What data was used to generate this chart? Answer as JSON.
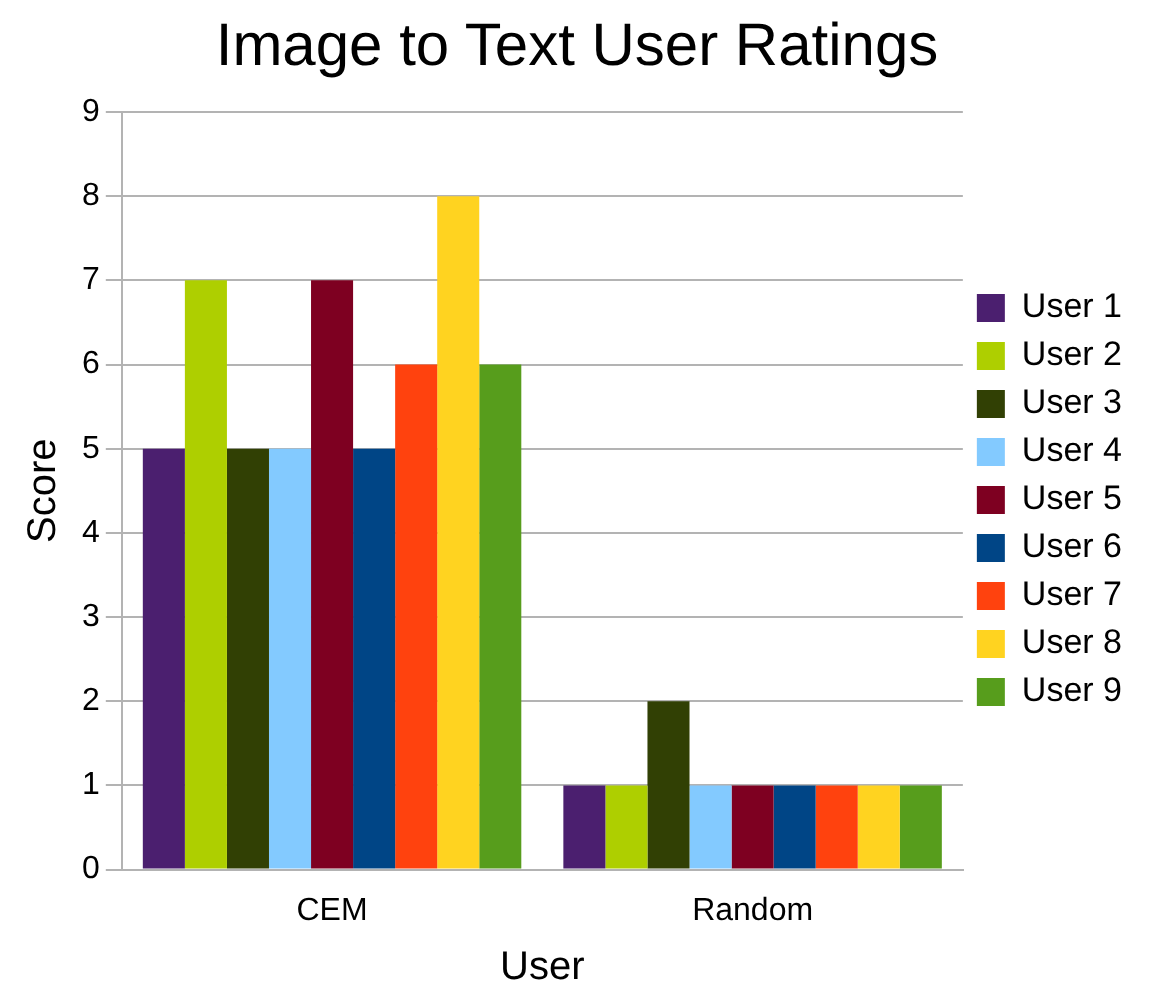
{
  "chart_data": {
    "type": "bar",
    "title": "Image to Text User Ratings",
    "xlabel": "User",
    "ylabel": "Score",
    "categories": [
      "CEM",
      "Random"
    ],
    "series": [
      {
        "name": "User 1",
        "color": "#4b1f6f",
        "values": [
          5,
          1
        ]
      },
      {
        "name": "User 2",
        "color": "#aecf00",
        "values": [
          7,
          1
        ]
      },
      {
        "name": "User 3",
        "color": "#314004",
        "values": [
          5,
          2
        ]
      },
      {
        "name": "User 4",
        "color": "#83caff",
        "values": [
          5,
          1
        ]
      },
      {
        "name": "User 5",
        "color": "#7e0021",
        "values": [
          7,
          1
        ]
      },
      {
        "name": "User 6",
        "color": "#004586",
        "values": [
          5,
          1
        ]
      },
      {
        "name": "User 7",
        "color": "#ff420e",
        "values": [
          6,
          1
        ]
      },
      {
        "name": "User 8",
        "color": "#ffd320",
        "values": [
          8,
          1
        ]
      },
      {
        "name": "User 9",
        "color": "#579d1c",
        "values": [
          6,
          1
        ]
      }
    ],
    "ylim": [
      0,
      9
    ],
    "yticks": [
      0,
      1,
      2,
      3,
      4,
      5,
      6,
      7,
      8,
      9
    ],
    "grid": "y",
    "legend": "right"
  }
}
